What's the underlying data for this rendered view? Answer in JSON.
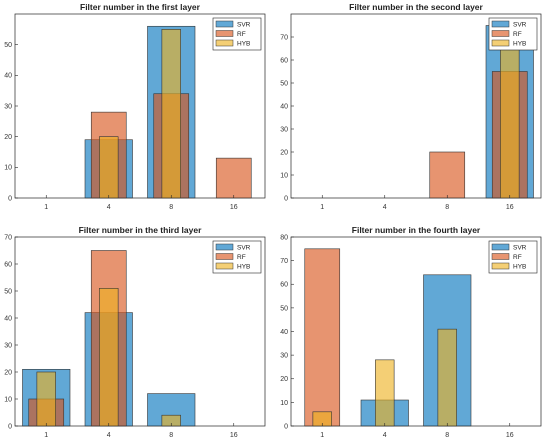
{
  "chart_data": [
    {
      "type": "bar",
      "title": "Filter number in the first layer",
      "categories": [
        "1",
        "4",
        "8",
        "16"
      ],
      "ylim": [
        0,
        60
      ],
      "yticks": [
        0,
        10,
        20,
        30,
        40,
        50
      ],
      "legend_position": "top-right",
      "series": [
        {
          "name": "SVR",
          "values": [
            0,
            19,
            56,
            0
          ],
          "color": "#0072BD"
        },
        {
          "name": "RF",
          "values": [
            0,
            28,
            34,
            13
          ],
          "color": "#D95319"
        },
        {
          "name": "HYB",
          "values": [
            0,
            20,
            55,
            0
          ],
          "color": "#EDB120"
        }
      ]
    },
    {
      "type": "bar",
      "title": "Filter number in the second layer",
      "categories": [
        "1",
        "4",
        "8",
        "16"
      ],
      "ylim": [
        0,
        80
      ],
      "yticks": [
        0,
        10,
        20,
        30,
        40,
        50,
        60,
        70
      ],
      "legend_position": "top-right",
      "series": [
        {
          "name": "SVR",
          "values": [
            0,
            0,
            0,
            75
          ],
          "color": "#0072BD"
        },
        {
          "name": "RF",
          "values": [
            0,
            0,
            20,
            55
          ],
          "color": "#D95319"
        },
        {
          "name": "HYB",
          "values": [
            0,
            0,
            0,
            75
          ],
          "color": "#EDB120"
        }
      ]
    },
    {
      "type": "bar",
      "title": "Filter number in the third layer",
      "categories": [
        "1",
        "4",
        "8",
        "16"
      ],
      "ylim": [
        0,
        70
      ],
      "yticks": [
        0,
        10,
        20,
        30,
        40,
        50,
        60,
        70
      ],
      "legend_position": "top-right",
      "series": [
        {
          "name": "SVR",
          "values": [
            21,
            42,
            12,
            0
          ],
          "color": "#0072BD"
        },
        {
          "name": "RF",
          "values": [
            10,
            65,
            0,
            0
          ],
          "color": "#D95319"
        },
        {
          "name": "HYB",
          "values": [
            20,
            51,
            4,
            0
          ],
          "color": "#EDB120"
        }
      ]
    },
    {
      "type": "bar",
      "title": "Filter number in the fourth layer",
      "categories": [
        "1",
        "4",
        "8",
        "16"
      ],
      "ylim": [
        0,
        80
      ],
      "yticks": [
        0,
        10,
        20,
        30,
        40,
        50,
        60,
        70,
        80
      ],
      "legend_position": "top-right",
      "series": [
        {
          "name": "SVR",
          "values": [
            0,
            11,
            64,
            0
          ],
          "color": "#0072BD"
        },
        {
          "name": "RF",
          "values": [
            75,
            0,
            0,
            0
          ],
          "color": "#D95319"
        },
        {
          "name": "HYB",
          "values": [
            6,
            28,
            41,
            0
          ],
          "color": "#EDB120"
        }
      ]
    }
  ]
}
